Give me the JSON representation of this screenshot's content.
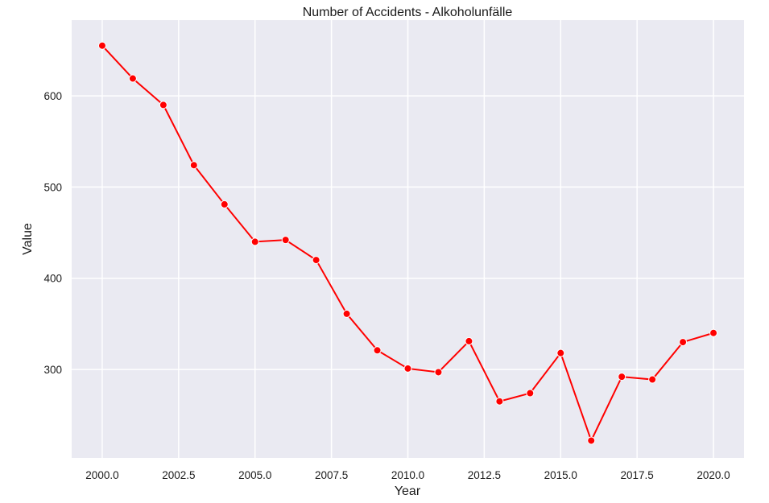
{
  "chart_data": {
    "type": "line",
    "title": "Number of Accidents - Alkoholunfälle",
    "xlabel": "Year",
    "ylabel": "Value",
    "xlim": [
      1999.0,
      2021.0
    ],
    "ylim": [
      203,
      683
    ],
    "grid": true,
    "x_ticks": [
      2000.0,
      2002.5,
      2005.0,
      2007.5,
      2010.0,
      2012.5,
      2015.0,
      2017.5,
      2020.0
    ],
    "x_tick_labels": [
      "2000.0",
      "2002.5",
      "2005.0",
      "2007.5",
      "2010.0",
      "2012.5",
      "2015.0",
      "2017.5",
      "2020.0"
    ],
    "y_ticks": [
      300,
      400,
      500,
      600
    ],
    "y_tick_labels": [
      "300",
      "400",
      "500",
      "600"
    ],
    "series": [
      {
        "color": "#ff0000",
        "x": [
          2000,
          2001,
          2002,
          2003,
          2004,
          2005,
          2006,
          2007,
          2008,
          2009,
          2010,
          2011,
          2012,
          2013,
          2014,
          2015,
          2016,
          2017,
          2018,
          2019,
          2020
        ],
        "values": [
          655,
          619,
          590,
          524,
          481,
          440,
          442,
          420,
          361,
          321,
          301,
          297,
          331,
          265,
          274,
          318,
          222,
          292,
          289,
          330,
          340
        ]
      }
    ],
    "colors": {
      "plot_background": "#eaeaf2",
      "grid": "#ffffff",
      "line": "#ff0000"
    }
  }
}
